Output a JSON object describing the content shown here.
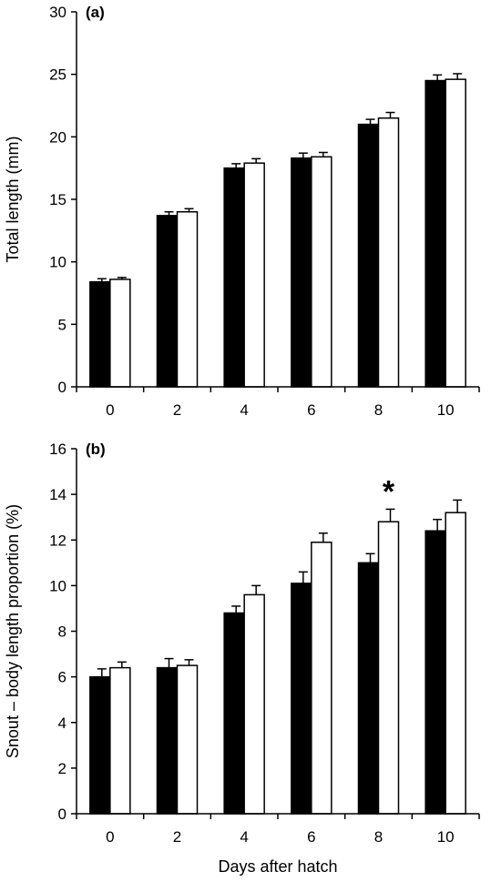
{
  "chart_data": [
    {
      "type": "bar",
      "panel_label": "(a)",
      "categories": [
        "0",
        "2",
        "4",
        "6",
        "8",
        "10"
      ],
      "series": [
        {
          "color": "#000000",
          "values": [
            8.4,
            13.7,
            17.5,
            18.3,
            21.0,
            24.5
          ],
          "errors": [
            0.25,
            0.3,
            0.35,
            0.4,
            0.4,
            0.45
          ]
        },
        {
          "color": "#ffffff",
          "values": [
            8.6,
            14.0,
            17.9,
            18.4,
            21.5,
            24.6
          ],
          "errors": [
            0.15,
            0.25,
            0.35,
            0.35,
            0.45,
            0.45
          ]
        }
      ],
      "xlabel": "",
      "ylabel": "Total length (mm)",
      "ylim": [
        0,
        30
      ],
      "yticks": [
        "0",
        "5",
        "10",
        "15",
        "20",
        "25",
        "30"
      ],
      "grid": false,
      "annotations": []
    },
    {
      "type": "bar",
      "panel_label": "(b)",
      "categories": [
        "0",
        "2",
        "4",
        "6",
        "8",
        "10"
      ],
      "series": [
        {
          "color": "#000000",
          "values": [
            6.0,
            6.4,
            8.8,
            10.1,
            11.0,
            12.4
          ],
          "errors": [
            0.35,
            0.4,
            0.3,
            0.5,
            0.4,
            0.5
          ]
        },
        {
          "color": "#ffffff",
          "values": [
            6.4,
            6.5,
            9.6,
            11.9,
            12.8,
            13.2
          ],
          "errors": [
            0.25,
            0.25,
            0.4,
            0.4,
            0.55,
            0.55
          ]
        }
      ],
      "xlabel": "Days after hatch",
      "ylabel": "Snout – body length proportion (%)",
      "ylim": [
        0,
        16
      ],
      "yticks": [
        "0",
        "2",
        "4",
        "6",
        "8",
        "10",
        "12",
        "14",
        "16"
      ],
      "grid": false,
      "annotations": [
        {
          "text": "*",
          "category": "8",
          "series_index": 1
        }
      ]
    }
  ]
}
